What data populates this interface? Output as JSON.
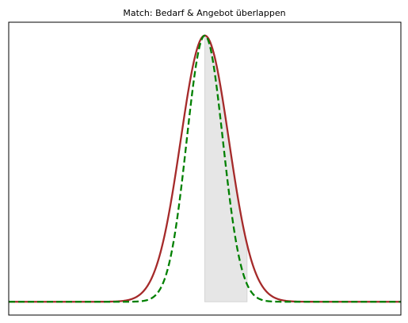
{
  "chart_data": {
    "type": "line",
    "title": "Match: Bedarf & Angebot überlappen",
    "xlabel": "",
    "ylabel": "",
    "xlim": [
      -3.25,
      3.25
    ],
    "ylim": [
      -0.05,
      1.05
    ],
    "grid": false,
    "x_ticks_visible": false,
    "y_ticks_visible": false,
    "shaded_region": {
      "x_start": 0.0,
      "x_end": 0.7,
      "color": "#e6e6e6"
    },
    "series": [
      {
        "kind": "gaussian",
        "mean": 0.0,
        "sd": 0.4,
        "peak": 1.0,
        "color": "#a52a2a",
        "line_style": "solid",
        "x_range": [
          -3.25,
          3.25
        ]
      },
      {
        "kind": "gaussian",
        "mean": 0.0,
        "sd": 0.3,
        "peak": 1.0,
        "color": "#008000",
        "line_style": "dashed",
        "x_range": [
          -3.25,
          3.25
        ]
      }
    ]
  }
}
